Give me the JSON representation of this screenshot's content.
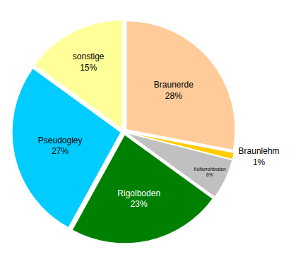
{
  "chart_data": {
    "type": "pie",
    "categories": [
      "Braunerde",
      "Braunlehm",
      "Kulturrohboden",
      "Rigolboden",
      "Pseudogley",
      "sonstige"
    ],
    "values": [
      28,
      1,
      6,
      23,
      27,
      15
    ],
    "value_labels": [
      "28%",
      "1%",
      "6%",
      "23%",
      "27%",
      "15%"
    ],
    "colors": [
      "#ffcc99",
      "#ffcc00",
      "#c0c0c0",
      "#008000",
      "#00ccff",
      "#ffff99"
    ],
    "data_labels": true
  }
}
